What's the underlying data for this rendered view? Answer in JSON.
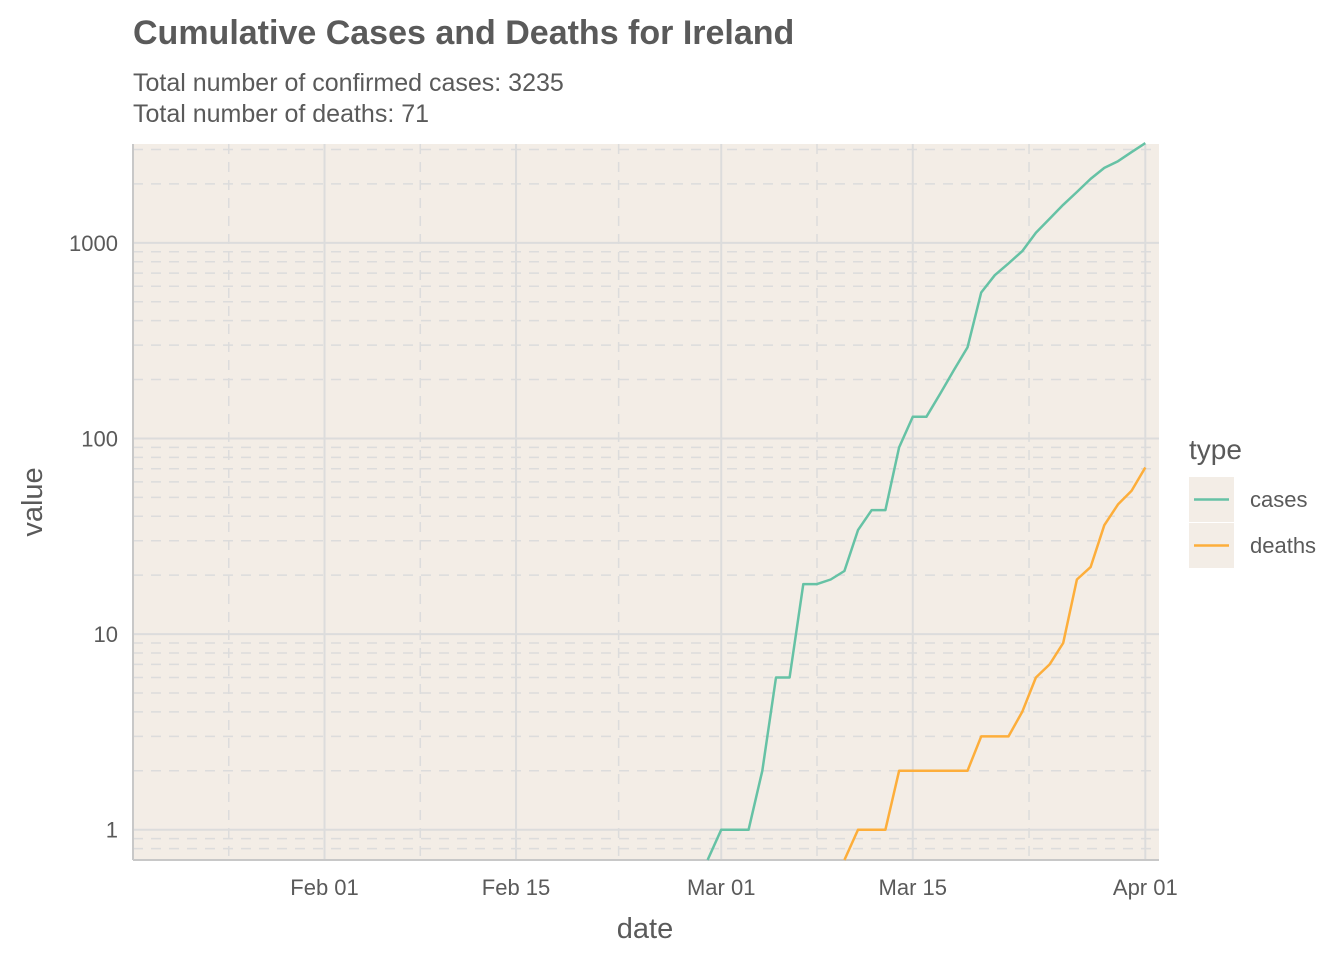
{
  "chart_data": {
    "type": "line",
    "title": "Cumulative Cases and Deaths for Ireland",
    "subtitle_lines": [
      "Total number of confirmed cases: 3235",
      "Total number of deaths: 71"
    ],
    "xlabel": "date",
    "ylabel": "value",
    "x_scale": "date",
    "y_scale": "log10",
    "xlim": [
      "2020-01-18",
      "2020-04-02"
    ],
    "ylim": [
      0.7,
      3200
    ],
    "x_ticks": [
      {
        "date": "2020-02-01",
        "label": "Feb 01"
      },
      {
        "date": "2020-02-15",
        "label": "Feb 15"
      },
      {
        "date": "2020-03-01",
        "label": "Mar 01"
      },
      {
        "date": "2020-03-15",
        "label": "Mar 15"
      },
      {
        "date": "2020-04-01",
        "label": "Apr 01"
      }
    ],
    "y_ticks": [
      {
        "value": 1,
        "label": "1"
      },
      {
        "value": 10,
        "label": "10"
      },
      {
        "value": 100,
        "label": "100"
      },
      {
        "value": 1000,
        "label": "1000"
      }
    ],
    "grid": true,
    "legend": {
      "title": "type",
      "position": "right"
    },
    "series": [
      {
        "name": "cases",
        "color": "#66c2a5",
        "points": [
          [
            "2020-02-29",
            0.7
          ],
          [
            "2020-03-01",
            1
          ],
          [
            "2020-03-02",
            1
          ],
          [
            "2020-03-03",
            1
          ],
          [
            "2020-03-04",
            2
          ],
          [
            "2020-03-05",
            6
          ],
          [
            "2020-03-06",
            6
          ],
          [
            "2020-03-07",
            18
          ],
          [
            "2020-03-08",
            18
          ],
          [
            "2020-03-09",
            19
          ],
          [
            "2020-03-10",
            21
          ],
          [
            "2020-03-11",
            34
          ],
          [
            "2020-03-12",
            43
          ],
          [
            "2020-03-13",
            43
          ],
          [
            "2020-03-14",
            90
          ],
          [
            "2020-03-15",
            129
          ],
          [
            "2020-03-16",
            129
          ],
          [
            "2020-03-17",
            169
          ],
          [
            "2020-03-18",
            223
          ],
          [
            "2020-03-19",
            292
          ],
          [
            "2020-03-20",
            557
          ],
          [
            "2020-03-21",
            683
          ],
          [
            "2020-03-22",
            785
          ],
          [
            "2020-03-23",
            906
          ],
          [
            "2020-03-24",
            1125
          ],
          [
            "2020-03-25",
            1329
          ],
          [
            "2020-03-26",
            1564
          ],
          [
            "2020-03-27",
            1819
          ],
          [
            "2020-03-28",
            2121
          ],
          [
            "2020-03-29",
            2415
          ],
          [
            "2020-03-30",
            2615
          ],
          [
            "2020-03-31",
            2910
          ],
          [
            "2020-04-01",
            3235
          ]
        ]
      },
      {
        "name": "deaths",
        "color": "#fdae3b",
        "points": [
          [
            "2020-03-10",
            0.7
          ],
          [
            "2020-03-11",
            1
          ],
          [
            "2020-03-12",
            1
          ],
          [
            "2020-03-13",
            1
          ],
          [
            "2020-03-14",
            2
          ],
          [
            "2020-03-15",
            2
          ],
          [
            "2020-03-16",
            2
          ],
          [
            "2020-03-17",
            2
          ],
          [
            "2020-03-18",
            2
          ],
          [
            "2020-03-19",
            2
          ],
          [
            "2020-03-20",
            3
          ],
          [
            "2020-03-21",
            3
          ],
          [
            "2020-03-22",
            3
          ],
          [
            "2020-03-23",
            4
          ],
          [
            "2020-03-24",
            6
          ],
          [
            "2020-03-25",
            7
          ],
          [
            "2020-03-26",
            9
          ],
          [
            "2020-03-27",
            19
          ],
          [
            "2020-03-28",
            22
          ],
          [
            "2020-03-29",
            36
          ],
          [
            "2020-03-30",
            46
          ],
          [
            "2020-03-31",
            54
          ],
          [
            "2020-04-01",
            71
          ]
        ]
      }
    ],
    "panel_color": "#f3ede6",
    "grid_color": "#dcdcdc"
  }
}
